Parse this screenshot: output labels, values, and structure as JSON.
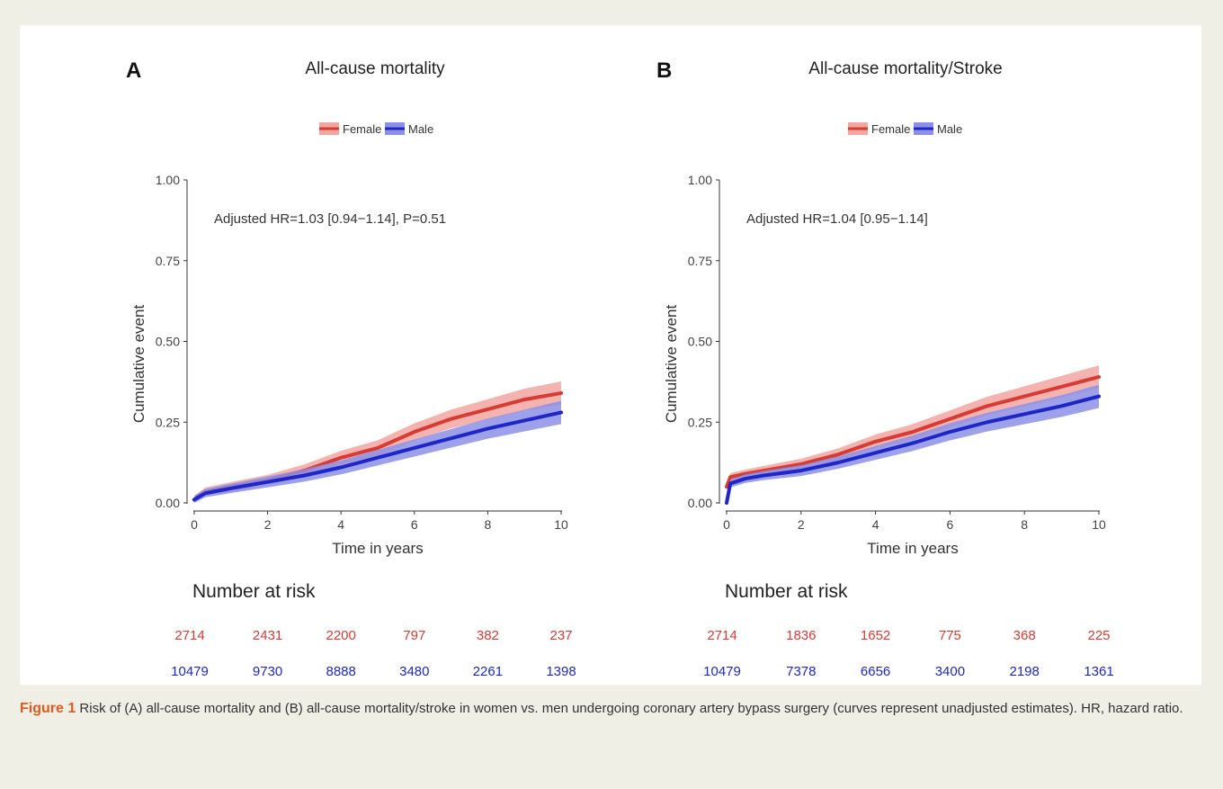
{
  "caption": {
    "label": "Figure 1",
    "text": "Risk of (A) all-cause mortality and (B) all-cause mortality/stroke in women vs. men undergoing coronary artery bypass surgery (curves represent unadjusted estimates). HR, hazard ratio."
  },
  "risk_table_title": "Number at risk",
  "colors": {
    "female": "#d83a34",
    "female_band": "#f2a6a0",
    "male": "#1f26c8",
    "male_band": "#8c90e6"
  },
  "chart_data": [
    {
      "type": "line",
      "panel": "A",
      "title": "All-cause mortality",
      "xlabel": "Time in years",
      "ylabel": "Cumulative event",
      "xlim": [
        0,
        10
      ],
      "ylim": [
        0,
        1
      ],
      "xticks": [
        0,
        2,
        4,
        6,
        8,
        10
      ],
      "yticks": [
        "0.00",
        "0.25",
        "0.50",
        "0.75",
        "1.00"
      ],
      "annotation": "Adjusted HR=1.03 [0.94−1.14], P=0.51",
      "legend": {
        "position": "top",
        "entries": [
          "Female",
          "Male"
        ]
      },
      "series": [
        {
          "name": "Female",
          "x": [
            0,
            0.3,
            1,
            2,
            3,
            4,
            5,
            6,
            7,
            8,
            9,
            10
          ],
          "y": [
            0.01,
            0.035,
            0.05,
            0.07,
            0.1,
            0.14,
            0.17,
            0.22,
            0.26,
            0.29,
            0.32,
            0.34
          ]
        },
        {
          "name": "Male",
          "x": [
            0,
            0.3,
            1,
            2,
            3,
            4,
            5,
            6,
            7,
            8,
            9,
            10
          ],
          "y": [
            0.01,
            0.03,
            0.045,
            0.065,
            0.085,
            0.11,
            0.14,
            0.17,
            0.2,
            0.23,
            0.255,
            0.28
          ]
        }
      ],
      "number_at_risk": {
        "x": [
          0,
          2,
          4,
          6,
          8,
          10
        ],
        "female": [
          "2714",
          "2431",
          "2200",
          "797",
          "382",
          "237"
        ],
        "male": [
          "10479",
          "9730",
          "8888",
          "3480",
          "2261",
          "1398"
        ]
      }
    },
    {
      "type": "line",
      "panel": "B",
      "title": "All-cause mortality/Stroke",
      "xlabel": "Time in years",
      "ylabel": "Cumulative event",
      "xlim": [
        0,
        10
      ],
      "ylim": [
        0,
        1
      ],
      "xticks": [
        0,
        2,
        4,
        6,
        8,
        10
      ],
      "yticks": [
        "0.00",
        "0.25",
        "0.50",
        "0.75",
        "1.00"
      ],
      "annotation": "Adjusted HR=1.04 [0.95−1.14]",
      "legend": {
        "position": "top",
        "entries": [
          "Female",
          "Male"
        ]
      },
      "series": [
        {
          "name": "Female",
          "x": [
            0,
            0.1,
            0.5,
            1,
            2,
            3,
            4,
            5,
            6,
            7,
            8,
            9,
            10
          ],
          "y": [
            0.05,
            0.08,
            0.09,
            0.1,
            0.12,
            0.15,
            0.19,
            0.22,
            0.26,
            0.3,
            0.33,
            0.36,
            0.39
          ]
        },
        {
          "name": "Male",
          "x": [
            0,
            0.1,
            0.5,
            1,
            2,
            3,
            4,
            5,
            6,
            7,
            8,
            9,
            10
          ],
          "y": [
            0.0,
            0.06,
            0.075,
            0.085,
            0.1,
            0.125,
            0.155,
            0.185,
            0.22,
            0.25,
            0.275,
            0.3,
            0.33
          ]
        }
      ],
      "number_at_risk": {
        "x": [
          0,
          2,
          4,
          6,
          8,
          10
        ],
        "female": [
          "2714",
          "1836",
          "1652",
          "775",
          "368",
          "225"
        ],
        "male": [
          "10479",
          "7378",
          "6656",
          "3400",
          "2198",
          "1361"
        ]
      }
    }
  ]
}
